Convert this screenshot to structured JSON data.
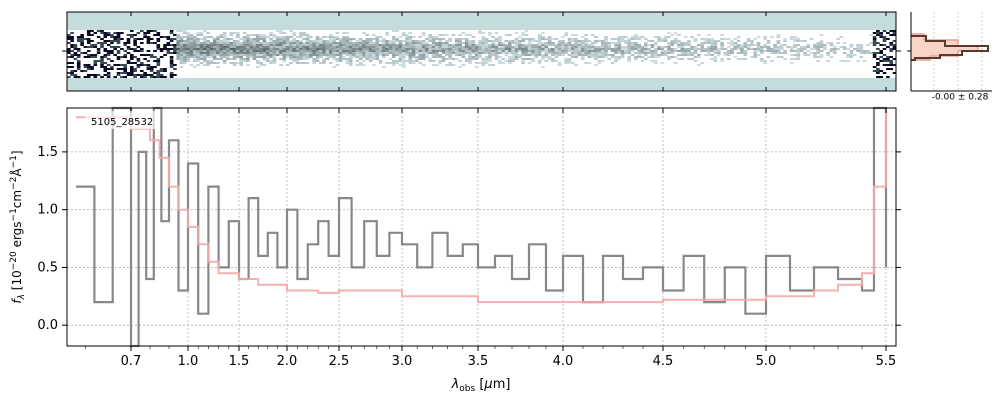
{
  "chart_data": [
    {
      "type": "heatmap",
      "panel": "2d-spectrum"
    },
    {
      "type": "line",
      "panel": "1d-spectrum",
      "annotation": "5105_28532",
      "xlabel": "λobs [μm]",
      "ylabel": "fλ [10⁻²⁰ ergs⁻¹cm⁻²Å⁻¹]",
      "xscale": "nonlinear (roughly reciprocal-like, compressed at short wavelengths)",
      "xlim": [
        0.56,
        5.55
      ],
      "ylim": [
        -0.18,
        1.88
      ],
      "xticks": [
        {
          "value": 0.7,
          "label": "0.7"
        },
        {
          "value": 1.0,
          "label": "1.0"
        },
        {
          "value": 1.5,
          "label": "1.5"
        },
        {
          "value": 2.0,
          "label": "2.0"
        },
        {
          "value": 2.5,
          "label": "2.5"
        },
        {
          "value": 3.0,
          "label": "3.0"
        },
        {
          "value": 3.5,
          "label": "3.5"
        },
        {
          "value": 4.0,
          "label": "4.0"
        },
        {
          "value": 4.5,
          "label": "4.5"
        },
        {
          "value": 5.0,
          "label": "5.0"
        },
        {
          "value": 5.5,
          "label": "5.5"
        }
      ],
      "yticks": [
        {
          "value": 0.0,
          "label": "0.0"
        },
        {
          "value": 0.5,
          "label": "0.5"
        },
        {
          "value": 1.0,
          "label": "1.0"
        },
        {
          "value": 1.5,
          "label": "1.5"
        }
      ],
      "grid": true,
      "series": [
        {
          "color": "#888888",
          "x": [
            0.58,
            0.62,
            0.66,
            0.7,
            0.74,
            0.78,
            0.82,
            0.86,
            0.9,
            0.95,
            1.0,
            1.1,
            1.2,
            1.3,
            1.4,
            1.5,
            1.6,
            1.7,
            1.8,
            1.9,
            2.0,
            2.1,
            2.2,
            2.3,
            2.4,
            2.5,
            2.6,
            2.7,
            2.8,
            2.9,
            3.0,
            3.1,
            3.2,
            3.3,
            3.4,
            3.5,
            3.6,
            3.7,
            3.8,
            3.9,
            4.0,
            4.1,
            4.2,
            4.3,
            4.4,
            4.5,
            4.6,
            4.7,
            4.8,
            4.9,
            5.0,
            5.1,
            5.2,
            5.3,
            5.4,
            5.45,
            5.5
          ],
          "y": [
            1.2,
            0.2,
            1.9,
            -0.2,
            1.5,
            0.4,
            1.9,
            0.9,
            1.6,
            0.3,
            1.4,
            0.1,
            1.2,
            0.5,
            0.9,
            0.4,
            1.1,
            0.6,
            0.8,
            0.5,
            1.0,
            0.4,
            0.7,
            0.9,
            0.6,
            1.1,
            0.5,
            0.9,
            0.6,
            0.8,
            0.7,
            0.5,
            0.8,
            0.6,
            0.7,
            0.5,
            0.6,
            0.4,
            0.7,
            0.3,
            0.6,
            0.2,
            0.6,
            0.4,
            0.5,
            0.3,
            0.6,
            0.2,
            0.5,
            0.1,
            0.6,
            0.3,
            0.5,
            0.4,
            0.3,
            1.9,
            0.5
          ]
        },
        {
          "color": "#f4a9a8",
          "x": [
            0.58,
            0.7,
            0.8,
            0.85,
            0.9,
            0.95,
            1.0,
            1.1,
            1.2,
            1.3,
            1.5,
            1.7,
            2.0,
            2.3,
            2.5,
            3.0,
            3.5,
            4.0,
            4.5,
            5.0,
            5.2,
            5.3,
            5.4,
            5.45,
            5.5
          ],
          "y": [
            1.8,
            1.7,
            1.6,
            1.45,
            1.2,
            1.0,
            0.85,
            0.7,
            0.55,
            0.45,
            0.4,
            0.35,
            0.3,
            0.28,
            0.3,
            0.25,
            0.2,
            0.2,
            0.22,
            0.25,
            0.3,
            0.35,
            0.45,
            1.2,
            1.9
          ]
        }
      ],
      "side_panel": {
        "label": "-0.00 ± 0.28"
      }
    }
  ]
}
